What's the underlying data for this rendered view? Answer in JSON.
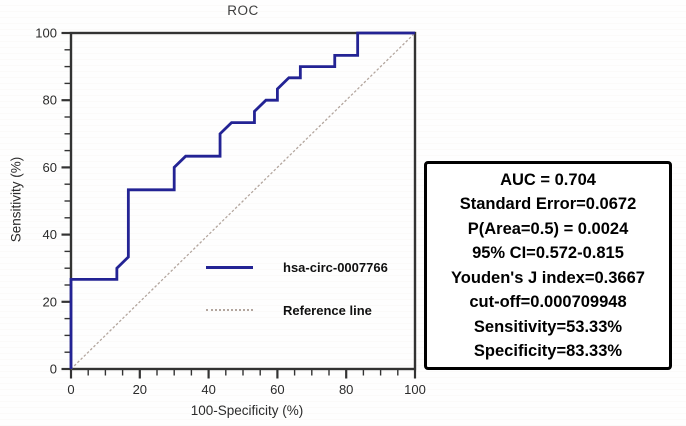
{
  "chart_data": {
    "type": "line",
    "title": "ROC",
    "xlabel": "100-Specificity (%)",
    "ylabel": "Sensitivity (%)",
    "xlim": [
      0,
      100
    ],
    "ylim": [
      0,
      100
    ],
    "grid": false,
    "legend_position": "inside-center-left",
    "x_ticks": [
      0,
      20,
      40,
      60,
      80,
      100
    ],
    "y_ticks": [
      0,
      20,
      40,
      60,
      80,
      100
    ],
    "minor_tick_step": 5,
    "series": [
      {
        "name": "hsa-circ-0007766",
        "style": "solid",
        "color": "#232394",
        "points": [
          [
            0,
            0
          ],
          [
            0,
            26.67
          ],
          [
            13.33,
            26.67
          ],
          [
            13.33,
            30
          ],
          [
            16.67,
            33.33
          ],
          [
            16.67,
            53.33
          ],
          [
            30,
            53.33
          ],
          [
            30,
            60
          ],
          [
            33.33,
            63.33
          ],
          [
            43.33,
            63.33
          ],
          [
            43.33,
            70
          ],
          [
            46.67,
            73.33
          ],
          [
            53.33,
            73.33
          ],
          [
            53.33,
            76.67
          ],
          [
            56.67,
            80
          ],
          [
            60,
            80
          ],
          [
            60,
            83.33
          ],
          [
            63.33,
            86.67
          ],
          [
            66.67,
            86.67
          ],
          [
            66.67,
            90
          ],
          [
            76.67,
            90
          ],
          [
            76.67,
            93.33
          ],
          [
            83.33,
            93.33
          ],
          [
            83.33,
            100
          ],
          [
            100,
            100
          ]
        ]
      },
      {
        "name": "Reference line",
        "style": "dotted",
        "color": "#b3a69e",
        "points": [
          [
            0,
            0
          ],
          [
            100,
            100
          ]
        ]
      }
    ]
  },
  "stats_box": {
    "lines": [
      "AUC = 0.704",
      "Standard Error=0.0672",
      "P(Area=0.5) = 0.0024",
      "95% CI=0.572-0.815",
      "Youden's J index=0.3667",
      "cut-off=0.000709948",
      "Sensitivity=53.33%",
      "Specificity=83.33%"
    ]
  },
  "colors": {
    "curve": "#232394",
    "reference": "#b3a69e",
    "axis": "#333333",
    "tick_text": "#2b2b2b",
    "background": "#ffffff"
  }
}
